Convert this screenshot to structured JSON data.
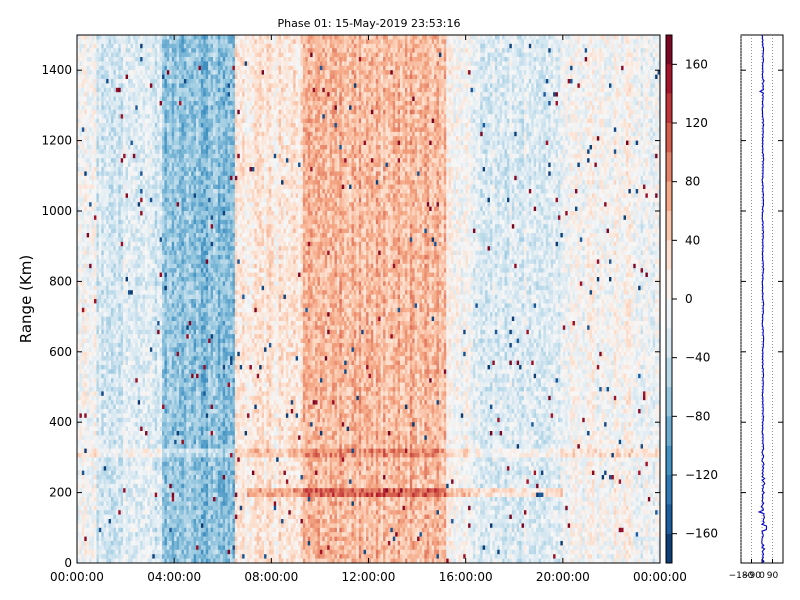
{
  "figure": {
    "title": "Phase 01: 15-May-2019 23:53:16",
    "ylabel": "Range (Km)"
  },
  "chart_data": [
    {
      "type": "heatmap",
      "title": "Phase 01: 15-May-2019 23:53:16",
      "xlabel": "",
      "ylabel": "Range (Km)",
      "x_ticks": [
        "00:00:00",
        "04:00:00",
        "08:00:00",
        "12:00:00",
        "16:00:00",
        "20:00:00",
        "00:00:00"
      ],
      "x_tick_hours": [
        0,
        4,
        8,
        12,
        16,
        20,
        24
      ],
      "xlim_hours": [
        0,
        24
      ],
      "y_ticks": [
        0,
        200,
        400,
        600,
        800,
        1000,
        1200,
        1400
      ],
      "ylim": [
        0,
        1500
      ],
      "colorbar": {
        "range": [
          -180,
          180
        ],
        "ticks": [
          "160",
          "120",
          "80",
          "40",
          "0",
          "−40",
          "−80",
          "−120",
          "−160"
        ],
        "tick_values": [
          160,
          120,
          80,
          40,
          0,
          -40,
          -80,
          -120,
          -160
        ],
        "colormap": [
          "#053061",
          "#2166ac",
          "#4393c3",
          "#92c5de",
          "#d1e5f0",
          "#f7f7f7",
          "#fddbc7",
          "#f4a582",
          "#d6604d",
          "#b2182b",
          "#67001f"
        ]
      },
      "pattern": {
        "blue_band_hours": [
          3.5,
          6.5
        ],
        "red_band_hours": [
          9.3,
          15.2
        ],
        "horizontal_layers_km": [
          200,
          310
        ]
      }
    },
    {
      "type": "line",
      "title": "",
      "xlim": [
        -180,
        180
      ],
      "x_ticks": [
        "−180",
        "−90",
        "0",
        "90"
      ],
      "x_tick_values": [
        -180,
        -90,
        0,
        90
      ],
      "ylim": [
        0,
        1500
      ],
      "line_color": "#0000cc",
      "grid_x_values": [
        -180,
        -90,
        0,
        90
      ]
    }
  ]
}
